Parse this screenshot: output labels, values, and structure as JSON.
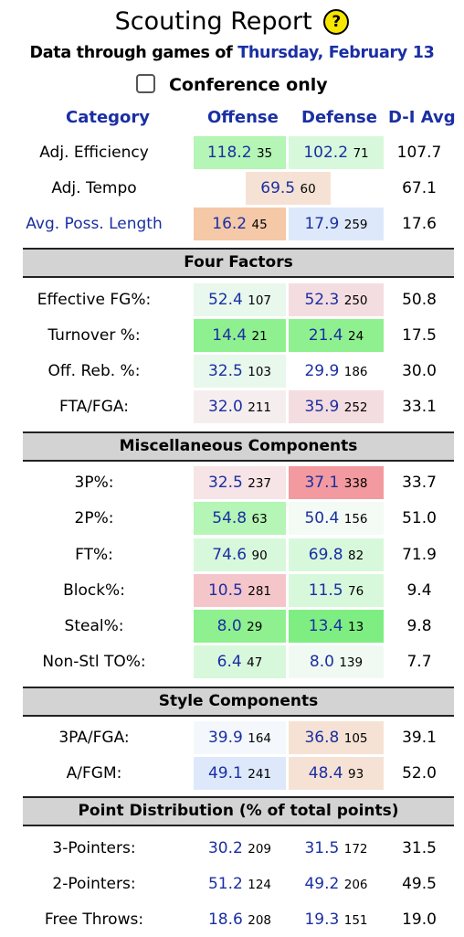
{
  "title": "Scouting Report",
  "help_icon_glyph": "?",
  "subtitle_prefix": "Data through games of",
  "subtitle_date": "Thursday, February 13",
  "conference_only_label": "Conference only",
  "headers": {
    "category": "Category",
    "offense": "Offense",
    "defense": "Defense",
    "avg": "D-I Avg"
  },
  "sections": {
    "four_factors": "Four Factors",
    "misc": "Miscellaneous Components",
    "style": "Style Components",
    "points": "Point Distribution (% of total points)"
  },
  "rows": {
    "adj_eff": {
      "label": "Adj. Efficiency",
      "off_val": "118.2",
      "off_rank": "35",
      "def_val": "102.2",
      "def_rank": "71",
      "avg": "107.7"
    },
    "adj_tempo": {
      "label": "Adj. Tempo",
      "val": "69.5",
      "rank": "60",
      "avg": "67.1"
    },
    "poss_len": {
      "label": "Avg. Poss. Length",
      "off_val": "16.2",
      "off_rank": "45",
      "def_val": "17.9",
      "def_rank": "259",
      "avg": "17.6"
    },
    "efg": {
      "label": "Effective FG%:",
      "off_val": "52.4",
      "off_rank": "107",
      "def_val": "52.3",
      "def_rank": "250",
      "avg": "50.8"
    },
    "to": {
      "label": "Turnover %:",
      "off_val": "14.4",
      "off_rank": "21",
      "def_val": "21.4",
      "def_rank": "24",
      "avg": "17.5"
    },
    "orb": {
      "label": "Off. Reb. %:",
      "off_val": "32.5",
      "off_rank": "103",
      "def_val": "29.9",
      "def_rank": "186",
      "avg": "30.0"
    },
    "fta": {
      "label": "FTA/FGA:",
      "off_val": "32.0",
      "off_rank": "211",
      "def_val": "35.9",
      "def_rank": "252",
      "avg": "33.1"
    },
    "p3": {
      "label": "3P%:",
      "off_val": "32.5",
      "off_rank": "237",
      "def_val": "37.1",
      "def_rank": "338",
      "avg": "33.7"
    },
    "p2": {
      "label": "2P%:",
      "off_val": "54.8",
      "off_rank": "63",
      "def_val": "50.4",
      "def_rank": "156",
      "avg": "51.0"
    },
    "ft": {
      "label": "FT%:",
      "off_val": "74.6",
      "off_rank": "90",
      "def_val": "69.8",
      "def_rank": "82",
      "avg": "71.9"
    },
    "blk": {
      "label": "Block%:",
      "off_val": "10.5",
      "off_rank": "281",
      "def_val": "11.5",
      "def_rank": "76",
      "avg": "9.4"
    },
    "stl": {
      "label": "Steal%:",
      "off_val": "8.0",
      "off_rank": "29",
      "def_val": "13.4",
      "def_rank": "13",
      "avg": "9.8"
    },
    "nstl": {
      "label": "Non-Stl TO%:",
      "off_val": "6.4",
      "off_rank": "47",
      "def_val": "8.0",
      "def_rank": "139",
      "avg": "7.7"
    },
    "tpa": {
      "label": "3PA/FGA:",
      "off_val": "39.9",
      "off_rank": "164",
      "def_val": "36.8",
      "def_rank": "105",
      "avg": "39.1"
    },
    "afgm": {
      "label": "A/FGM:",
      "off_val": "49.1",
      "off_rank": "241",
      "def_val": "48.4",
      "def_rank": "93",
      "avg": "52.0"
    },
    "pts3": {
      "label": "3-Pointers:",
      "off_val": "30.2",
      "off_rank": "209",
      "def_val": "31.5",
      "def_rank": "172",
      "avg": "31.5"
    },
    "pts2": {
      "label": "2-Pointers:",
      "off_val": "51.2",
      "off_rank": "124",
      "def_val": "49.2",
      "def_rank": "206",
      "avg": "49.5"
    },
    "ptsft": {
      "label": "Free Throws:",
      "off_val": "18.6",
      "off_rank": "208",
      "def_val": "19.3",
      "def_rank": "151",
      "avg": "19.0"
    }
  },
  "colors": {
    "link_blue": "#1a2fa3",
    "section_gray": "#d3d3d3",
    "help_yellow": "#f6e600",
    "green_strong": "#8ff08f",
    "green_mid": "#b5f5b5",
    "green_light": "#d8f8dc",
    "green_faint": "#e8f8ec",
    "salmon": "#f5c8a8",
    "peach_light": "#f6e2d4",
    "pink_light": "#f4dde0",
    "pink": "#f5c6c9",
    "red": "#f29a9f",
    "blue_light": "#dde9fb"
  }
}
